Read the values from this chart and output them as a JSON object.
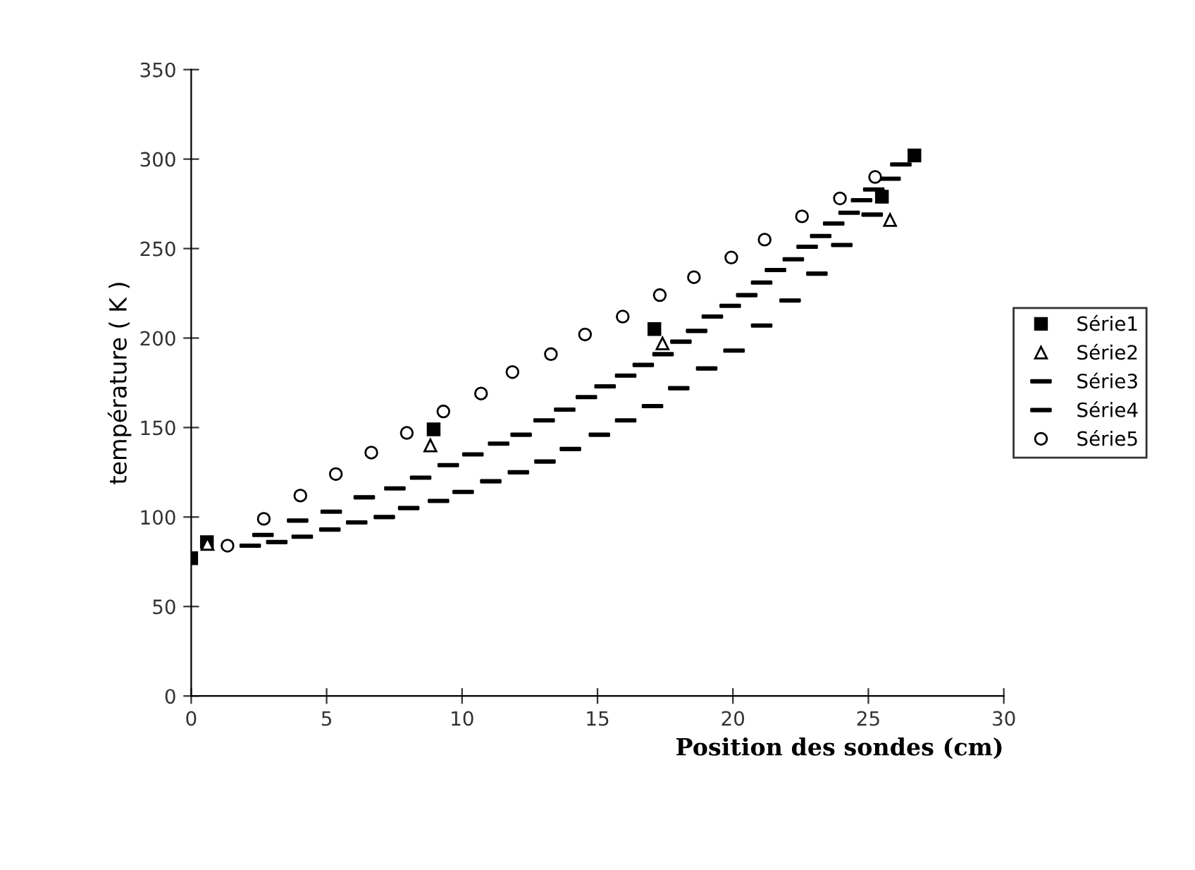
{
  "chart_data": {
    "type": "scatter",
    "xlabel": "Position des sondes (cm)",
    "ylabel": "température ( K )",
    "xlim": [
      0,
      30
    ],
    "xticks": [
      0,
      5,
      10,
      15,
      20,
      25,
      30
    ],
    "ylim": [
      0,
      350
    ],
    "yticks": [
      0,
      50,
      100,
      150,
      200,
      250,
      300,
      350
    ],
    "grid": false,
    "legend": "right",
    "series": [
      {
        "name": "Série1",
        "color": "#000000",
        "marker": "square",
        "x": [
          0.58,
          8.95,
          17.1,
          25.5
        ],
        "values": [
          86,
          149,
          205,
          279
        ]
      },
      {
        "name": "Série2",
        "color": "#000000",
        "marker": "triangle",
        "x": [
          0.6,
          8.83,
          17.4,
          25.8
        ],
        "values": [
          85,
          140,
          197,
          266
        ]
      },
      {
        "name": "Série3",
        "color": "#000000",
        "x": [
          2.18,
          3.16,
          4.1,
          5.12,
          6.11,
          7.13,
          8.03,
          9.13,
          10.04,
          11.06,
          12.08,
          13.06,
          14.0,
          15.07,
          16.04,
          17.03,
          18.0,
          19.03,
          20.04,
          21.06,
          22.11,
          23.1,
          24.02,
          25.14
        ],
        "values": [
          84,
          86,
          89,
          93,
          97,
          100,
          105,
          109,
          114,
          120,
          125,
          131,
          138,
          146,
          154,
          162,
          172,
          183,
          193,
          207,
          221,
          236,
          252,
          269
        ]
      },
      {
        "name": "Série4",
        "color": "#000000",
        "x": [
          2.65,
          3.93,
          5.17,
          6.39,
          7.52,
          8.47,
          9.49,
          10.4,
          11.35,
          12.18,
          13.03,
          13.79,
          14.59,
          15.28,
          16.04,
          16.69,
          17.42,
          18.08,
          18.66,
          19.24,
          19.9,
          20.51,
          21.06,
          21.57,
          22.23,
          22.74,
          23.24,
          23.72,
          24.29,
          24.75,
          25.2,
          25.8,
          26.2
        ],
        "values": [
          90,
          98,
          103,
          111,
          116,
          122,
          129,
          135,
          141,
          146,
          154,
          160,
          167,
          173,
          179,
          185,
          191,
          198,
          204,
          212,
          218,
          224,
          231,
          238,
          244,
          251,
          257,
          264,
          270,
          277,
          283,
          289,
          297
        ]
      },
      {
        "name": "Série5",
        "color": "#000000",
        "marker": "circle",
        "x": [
          1.34,
          2.68,
          4.03,
          5.34,
          6.65,
          7.96,
          9.31,
          10.7,
          11.86,
          13.28,
          14.54,
          15.93,
          17.3,
          18.56,
          19.94,
          21.17,
          22.55,
          23.95,
          25.25
        ],
        "values": [
          84,
          99,
          112,
          124,
          136,
          147,
          159,
          169,
          181,
          191,
          202,
          212,
          224,
          234,
          245,
          255,
          268,
          278,
          290
        ]
      },
      {
        "color": "#000000",
        "marker": "square",
        "x": [
          0,
          26.7
        ],
        "values": [
          77,
          302
        ]
      }
    ]
  }
}
